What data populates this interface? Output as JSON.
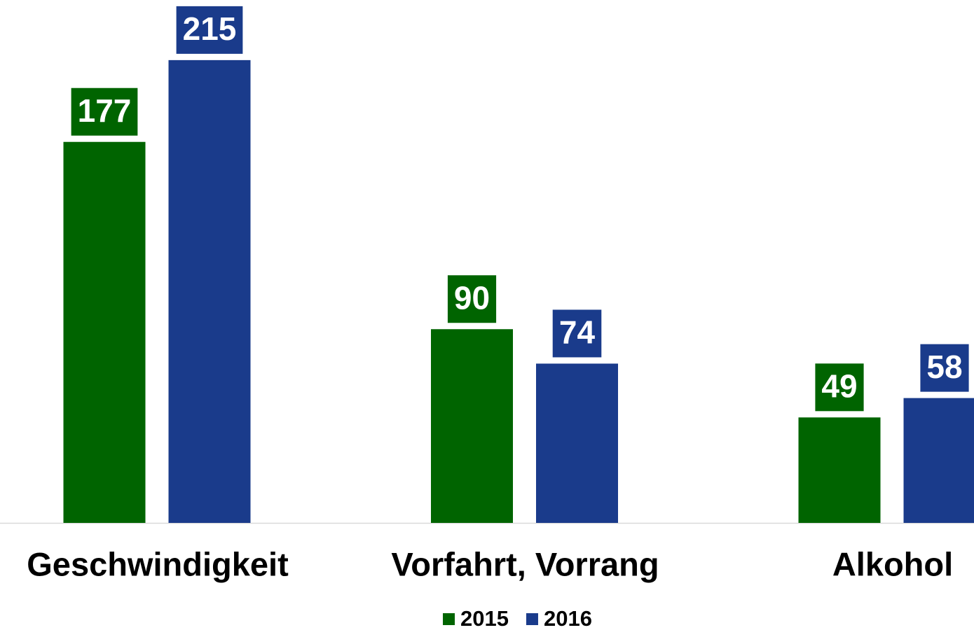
{
  "chart_data": {
    "type": "bar",
    "categories": [
      "Geschwindigkeit",
      "Vorfahrt, Vorrang",
      "Alkohol"
    ],
    "series": [
      {
        "name": "2015",
        "color": "#006400",
        "values": [
          177,
          90,
          49
        ]
      },
      {
        "name": "2016",
        "color": "#1a3b8b",
        "values": [
          215,
          74,
          58
        ]
      }
    ],
    "ylim": [
      0,
      240
    ]
  }
}
